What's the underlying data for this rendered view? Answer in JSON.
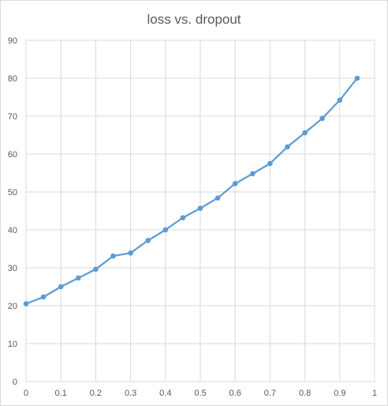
{
  "chart_data": {
    "type": "line",
    "title": "loss vs. dropout",
    "xlabel": "",
    "ylabel": "",
    "xlim": [
      0,
      1
    ],
    "ylim": [
      0,
      90
    ],
    "xticks": [
      "0",
      "0.1",
      "0.2",
      "0.3",
      "0.4",
      "0.5",
      "0.6",
      "0.7",
      "0.8",
      "0.9",
      "1"
    ],
    "yticks": [
      "0",
      "10",
      "20",
      "30",
      "40",
      "50",
      "60",
      "70",
      "80",
      "90"
    ],
    "grid": true,
    "legend": "none",
    "series": [
      {
        "color": "#5b9bd5",
        "x": [
          0,
          0.05,
          0.1,
          0.15,
          0.2,
          0.25,
          0.3,
          0.35,
          0.4,
          0.45,
          0.5,
          0.55,
          0.6,
          0.65,
          0.7,
          0.75,
          0.8,
          0.85,
          0.9,
          0.95
        ],
        "y": [
          20.5,
          22.3,
          25.0,
          27.3,
          29.6,
          33.1,
          33.9,
          37.2,
          40.0,
          43.2,
          45.7,
          48.4,
          52.2,
          54.8,
          57.5,
          61.9,
          65.6,
          69.4,
          74.2,
          80.0
        ]
      }
    ]
  }
}
